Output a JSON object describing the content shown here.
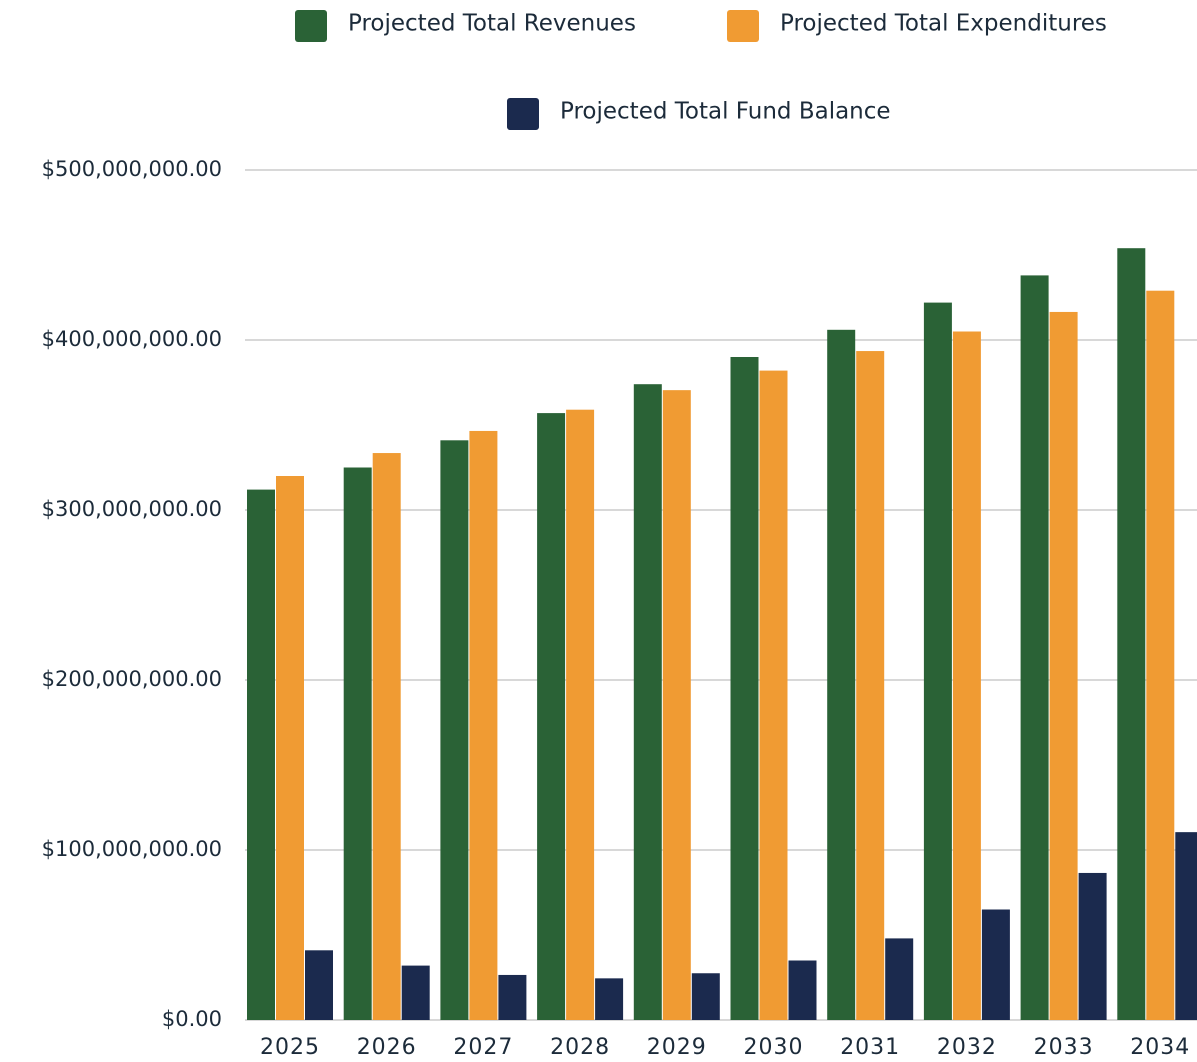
{
  "chart_data": {
    "type": "bar",
    "categories": [
      "2025",
      "2026",
      "2027",
      "2028",
      "2029",
      "2030",
      "2031",
      "2032",
      "2033",
      "2034"
    ],
    "series": [
      {
        "name": "Projected Total Revenues",
        "color": "#2a6236",
        "values": [
          312000000,
          325000000,
          341000000,
          357000000,
          374000000,
          390000000,
          406000000,
          422000000,
          438000000,
          454000000
        ]
      },
      {
        "name": "Projected Total Expenditures",
        "color": "#f09b33",
        "values": [
          320000000,
          333500000,
          346500000,
          359000000,
          370500000,
          382000000,
          393500000,
          405000000,
          416500000,
          429000000
        ]
      },
      {
        "name": "Projected Total Fund Balance",
        "color": "#1b2a4e",
        "values": [
          41000000,
          32000000,
          26500000,
          24500000,
          27500000,
          35000000,
          48000000,
          65000000,
          86500000,
          110500000
        ]
      }
    ],
    "ylim": [
      0,
      500000000
    ],
    "yticks": [
      {
        "value": 0,
        "label": "$0.00"
      },
      {
        "value": 100000000,
        "label": "$100,000,000.00"
      },
      {
        "value": 200000000,
        "label": "$200,000,000.00"
      },
      {
        "value": 300000000,
        "label": "$300,000,000.00"
      },
      {
        "value": 400000000,
        "label": "$400,000,000.00"
      },
      {
        "value": 500000000,
        "label": "$500,000,000.00"
      }
    ],
    "grid": true,
    "legend": "top"
  }
}
